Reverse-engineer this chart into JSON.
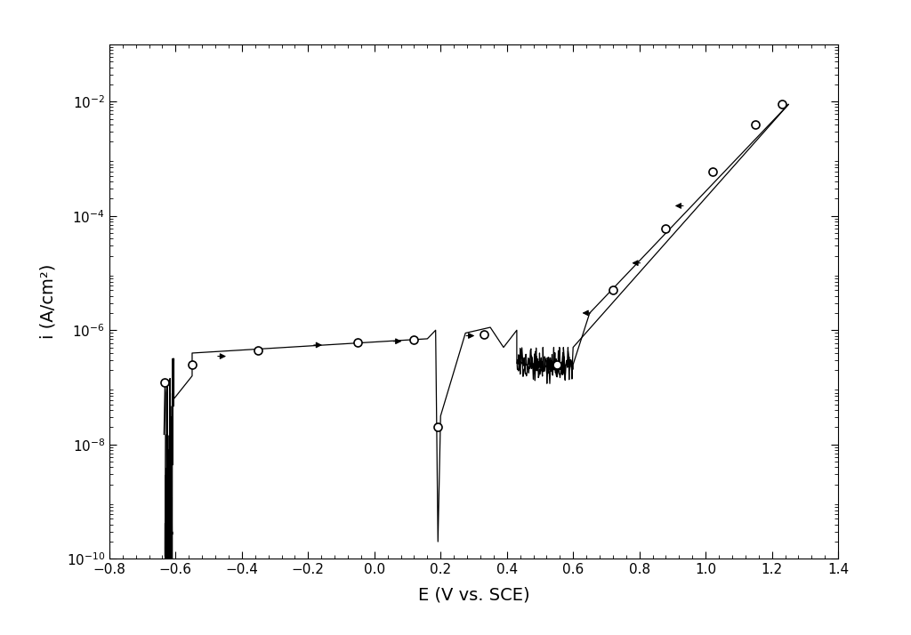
{
  "xlabel": "E (V vs. SCE)",
  "ylabel": "i (A/cm²)",
  "xlim": [
    -0.8,
    1.4
  ],
  "ylim": [
    1e-10,
    0.1
  ],
  "x_ticks": [
    -0.8,
    -0.6,
    -0.4,
    -0.2,
    0.0,
    0.2,
    0.4,
    0.6,
    0.8,
    1.0,
    1.2,
    1.4
  ],
  "xlabel_fontsize": 14,
  "ylabel_fontsize": 14,
  "tick_fontsize": 11,
  "line_color": "#000000",
  "background_color": "#ffffff"
}
